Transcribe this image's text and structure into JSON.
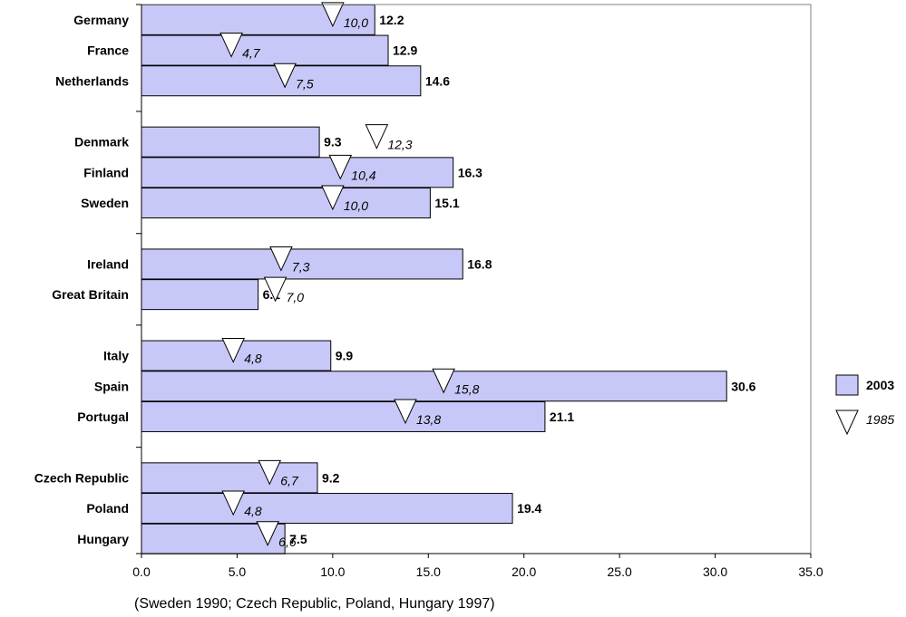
{
  "chart_data": {
    "type": "bar",
    "orientation": "horizontal",
    "categories": [
      "Germany",
      "France",
      "Netherlands",
      "Denmark",
      "Finland",
      "Sweden",
      "Ireland",
      "Great Britain",
      "Italy",
      "Spain",
      "Portugal",
      "Czech Republic",
      "Poland",
      "Hungary"
    ],
    "groups": [
      [
        "Germany",
        "France",
        "Netherlands"
      ],
      [
        "Denmark",
        "Finland",
        "Sweden"
      ],
      [
        "Ireland",
        "Great Britain"
      ],
      [
        "Italy",
        "Spain",
        "Portugal"
      ],
      [
        "Czech Republic",
        "Poland",
        "Hungary"
      ]
    ],
    "series": [
      {
        "name": "2003",
        "marker": "bar",
        "values": [
          12.2,
          12.9,
          14.6,
          9.3,
          16.3,
          15.1,
          16.8,
          6.1,
          9.9,
          30.6,
          21.1,
          9.2,
          19.4,
          7.5
        ],
        "labels": [
          "12.2",
          "12.9",
          "14.6",
          "9.3",
          "16.3",
          "15.1",
          "16.8",
          "6.1",
          "9.9",
          "30.6",
          "21.1",
          "9.2",
          "19.4",
          "7.5"
        ]
      },
      {
        "name": "1985",
        "marker": "triangle",
        "values": [
          10.0,
          4.7,
          7.5,
          12.3,
          10.4,
          10.0,
          7.3,
          7.0,
          4.8,
          15.8,
          13.8,
          6.7,
          4.8,
          6.6
        ],
        "labels": [
          "10,0",
          "4,7",
          "7,5",
          "12,3",
          "10,4",
          "10,0",
          "7,3",
          "7,0",
          "4,8",
          "15,8",
          "13,8",
          "6,7",
          "4,8",
          "6,6"
        ]
      }
    ],
    "xlim": [
      0,
      35
    ],
    "xticks": [
      "0.0",
      "5.0",
      "10.0",
      "15.0",
      "20.0",
      "25.0",
      "30.0",
      "35.0"
    ],
    "note": "(Sweden 1990; Czech Republic, Poland, Hungary 1997)",
    "legend": "right",
    "grid": false,
    "colors": {
      "bar_fill": "#c8c8f8",
      "bar_stroke": "#000000",
      "marker_fill": "#ffffff"
    }
  }
}
